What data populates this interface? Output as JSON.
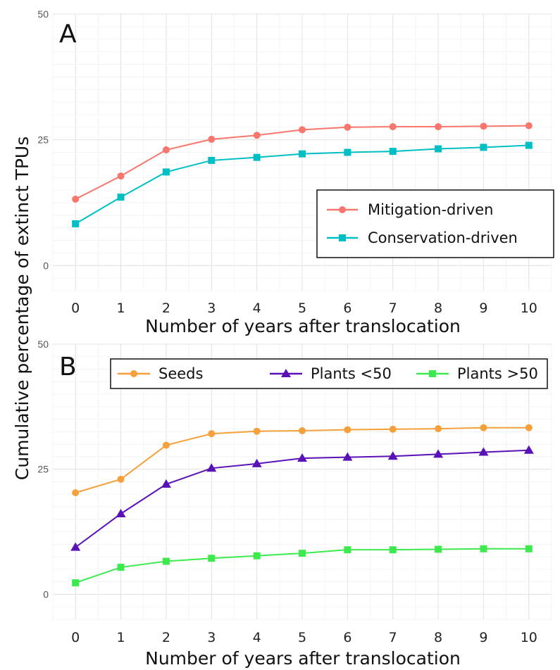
{
  "chart_data": [
    {
      "type": "line",
      "panel_label": "A",
      "x": [
        0,
        1,
        2,
        3,
        4,
        5,
        6,
        7,
        8,
        9,
        10
      ],
      "xlabel": "Number of years after translocation",
      "ylabel": "Cumulative percentage of extinct TPUs",
      "xlim": [
        -0.5,
        10.5
      ],
      "ylim": [
        -5,
        50
      ],
      "y_ticks": [
        0,
        25,
        50
      ],
      "grid": true,
      "legend_position": "bottom-right",
      "series": [
        {
          "name": "Mitigation-driven",
          "color": "#f8766d",
          "marker": "circle",
          "values": [
            13.2,
            17.8,
            23.0,
            25.1,
            25.9,
            27.0,
            27.5,
            27.6,
            27.6,
            27.7,
            27.8
          ]
        },
        {
          "name": "Conservation-driven",
          "color": "#00bfc4",
          "marker": "square",
          "values": [
            8.3,
            13.6,
            18.6,
            20.9,
            21.5,
            22.2,
            22.5,
            22.7,
            23.2,
            23.5,
            23.9
          ]
        }
      ]
    },
    {
      "type": "line",
      "panel_label": "B",
      "x": [
        0,
        1,
        2,
        3,
        4,
        5,
        6,
        7,
        8,
        9,
        10
      ],
      "xlabel": "Number of years after translocation",
      "ylabel": "Cumulative percentage of extinct TPUs",
      "xlim": [
        -0.5,
        10.5
      ],
      "ylim": [
        -5,
        50
      ],
      "y_ticks": [
        0,
        25,
        50
      ],
      "grid": true,
      "legend_position": "top",
      "series": [
        {
          "name": "Seeds",
          "color": "#f5a03a",
          "marker": "circle",
          "values": [
            20.3,
            23.0,
            29.8,
            32.1,
            32.6,
            32.7,
            32.9,
            33.0,
            33.1,
            33.3,
            33.3
          ]
        },
        {
          "name": "Plants <50",
          "color": "#5a11b7",
          "marker": "triangle",
          "values": [
            9.4,
            16.1,
            22.0,
            25.2,
            26.1,
            27.2,
            27.4,
            27.6,
            28.0,
            28.4,
            28.8
          ]
        },
        {
          "name": "Plants >50",
          "color": "#3cea4d",
          "marker": "square",
          "values": [
            2.3,
            5.4,
            6.6,
            7.2,
            7.7,
            8.2,
            8.9,
            8.9,
            9.0,
            9.1,
            9.1
          ]
        }
      ]
    }
  ]
}
